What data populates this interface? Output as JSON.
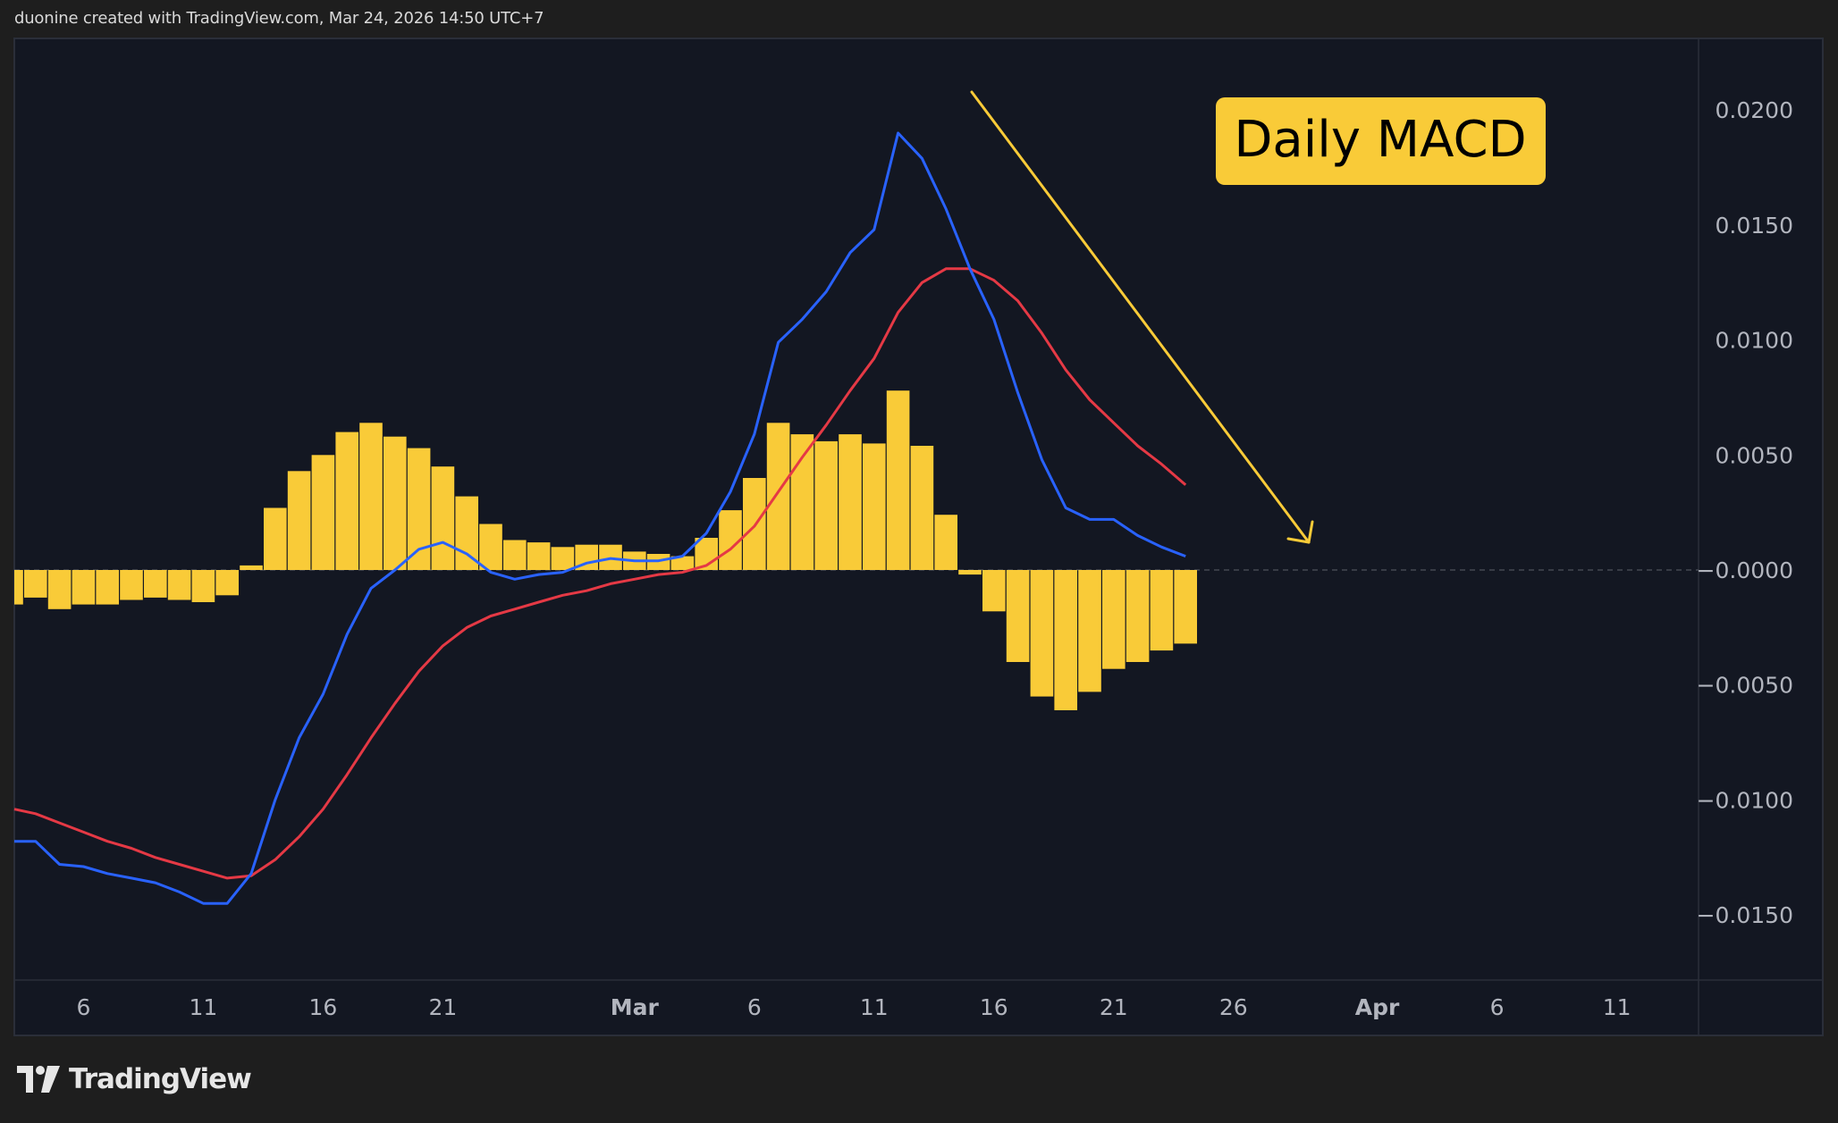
{
  "header": {
    "caption": "duonine created with TradingView.com, Mar 24, 2026 14:50 UTC+7"
  },
  "annotation": {
    "label": "Daily MACD",
    "arrow": {
      "direction": "down-right",
      "color": "#f9cb38"
    }
  },
  "footer": {
    "brand": "TradingView",
    "logo_icon": "tradingview-logo-icon"
  },
  "colors": {
    "background": "#1e1e1e",
    "plot_background": "#131722",
    "frame_border": "#2a2e39",
    "grid_zero_line": "#5d606b",
    "axis_text": "#b2b5be",
    "histogram": "#f9cb38",
    "macd_line": "#2962ff",
    "signal_line": "#e53945",
    "annotation_box": "#f9cb38",
    "annotation_text": "#000000"
  },
  "axes": {
    "y_ticks": [
      {
        "value": 0.02,
        "label": "0.0200"
      },
      {
        "value": 0.015,
        "label": "0.0150"
      },
      {
        "value": 0.01,
        "label": "0.0100"
      },
      {
        "value": 0.005,
        "label": "0.0050"
      },
      {
        "value": 0.0,
        "label": "−0.0000"
      },
      {
        "value": -0.005,
        "label": "−0.0050"
      },
      {
        "value": -0.01,
        "label": "−0.0100"
      },
      {
        "value": -0.015,
        "label": "−0.0150"
      }
    ],
    "x_ticks": [
      {
        "day_index": 3,
        "label": "6",
        "bold": false
      },
      {
        "day_index": 8,
        "label": "11",
        "bold": false
      },
      {
        "day_index": 13,
        "label": "16",
        "bold": false
      },
      {
        "day_index": 18,
        "label": "21",
        "bold": false
      },
      {
        "day_index": 26,
        "label": "Mar",
        "bold": true
      },
      {
        "day_index": 31,
        "label": "6",
        "bold": false
      },
      {
        "day_index": 36,
        "label": "11",
        "bold": false
      },
      {
        "day_index": 41,
        "label": "16",
        "bold": false
      },
      {
        "day_index": 46,
        "label": "21",
        "bold": false
      },
      {
        "day_index": 51,
        "label": "26",
        "bold": false
      },
      {
        "day_index": 57,
        "label": "Apr",
        "bold": true
      },
      {
        "day_index": 62,
        "label": "6",
        "bold": false
      },
      {
        "day_index": 67,
        "label": "11",
        "bold": false
      }
    ]
  },
  "chart_data": {
    "type": "bar",
    "title": "Daily MACD",
    "xlabel": "",
    "ylabel": "",
    "ylim": [
      -0.0178,
      0.0215
    ],
    "grid": false,
    "legend": null,
    "x": [
      "Feb 3",
      "Feb 4",
      "Feb 5",
      "Feb 6",
      "Feb 7",
      "Feb 8",
      "Feb 9",
      "Feb 10",
      "Feb 11",
      "Feb 12",
      "Feb 13",
      "Feb 14",
      "Feb 15",
      "Feb 16",
      "Feb 17",
      "Feb 18",
      "Feb 19",
      "Feb 20",
      "Feb 21",
      "Feb 22",
      "Feb 23",
      "Feb 24",
      "Feb 25",
      "Feb 26",
      "Feb 27",
      "Feb 28",
      "Mar 1",
      "Mar 2",
      "Mar 3",
      "Mar 4",
      "Mar 5",
      "Mar 6",
      "Mar 7",
      "Mar 8",
      "Mar 9",
      "Mar 10",
      "Mar 11",
      "Mar 12",
      "Mar 13",
      "Mar 14",
      "Mar 15",
      "Mar 16",
      "Mar 17",
      "Mar 18",
      "Mar 19",
      "Mar 20",
      "Mar 21",
      "Mar 22",
      "Mar 23",
      "Mar 24"
    ],
    "series": [
      {
        "name": "Histogram",
        "type": "bar",
        "color": "#f9cb38",
        "values": [
          -0.0015,
          -0.0012,
          -0.0017,
          -0.0015,
          -0.0015,
          -0.0013,
          -0.0012,
          -0.0013,
          -0.0014,
          -0.0011,
          0.0002,
          0.0027,
          0.0043,
          0.005,
          0.006,
          0.0064,
          0.0058,
          0.0053,
          0.0045,
          0.0032,
          0.002,
          0.0013,
          0.0012,
          0.001,
          0.0011,
          0.0011,
          0.0008,
          0.0007,
          0.0006,
          0.0014,
          0.0026,
          0.004,
          0.0064,
          0.0059,
          0.0056,
          0.0059,
          0.0055,
          0.0078,
          0.0054,
          0.0024,
          -0.0002,
          -0.0018,
          -0.004,
          -0.0055,
          -0.0061,
          -0.0053,
          -0.0043,
          -0.004,
          -0.0035,
          -0.0032
        ]
      },
      {
        "name": "MACD",
        "type": "line",
        "color": "#2962ff",
        "values": [
          -0.0118,
          -0.0118,
          -0.0128,
          -0.0129,
          -0.0132,
          -0.0134,
          -0.0136,
          -0.014,
          -0.0145,
          -0.0145,
          -0.0132,
          -0.01,
          -0.0073,
          -0.0054,
          -0.0028,
          -0.0008,
          0.0,
          0.0009,
          0.0012,
          0.0007,
          -0.0001,
          -0.0004,
          -0.0002,
          -0.0001,
          0.0003,
          0.0005,
          0.0004,
          0.0004,
          0.0006,
          0.0016,
          0.0034,
          0.0059,
          0.0099,
          0.0109,
          0.0121,
          0.0138,
          0.0148,
          0.019,
          0.0179,
          0.0157,
          0.0131,
          0.0109,
          0.0077,
          0.0048,
          0.0027,
          0.0022,
          0.0022,
          0.0015,
          0.001,
          0.0006
        ]
      },
      {
        "name": "Signal",
        "type": "line",
        "color": "#e53945",
        "values": [
          -0.0104,
          -0.0106,
          -0.011,
          -0.0114,
          -0.0118,
          -0.0121,
          -0.0125,
          -0.0128,
          -0.0131,
          -0.0134,
          -0.0133,
          -0.0126,
          -0.0116,
          -0.0104,
          -0.0089,
          -0.0073,
          -0.0058,
          -0.0044,
          -0.0033,
          -0.0025,
          -0.002,
          -0.0017,
          -0.0014,
          -0.0011,
          -0.0009,
          -0.0006,
          -0.0004,
          -0.0002,
          -0.0001,
          0.0002,
          0.0009,
          0.0019,
          0.0034,
          0.0049,
          0.0063,
          0.0078,
          0.0092,
          0.0112,
          0.0125,
          0.0131,
          0.0131,
          0.0126,
          0.0117,
          0.0103,
          0.0087,
          0.0074,
          0.0064,
          0.0054,
          0.0046,
          0.0037
        ]
      }
    ],
    "annotations": [
      {
        "type": "label",
        "text": "Daily MACD"
      },
      {
        "type": "arrow",
        "from": "Mar 16 @ 0.0207",
        "to": "Mar 29 @ 0.0012",
        "meaning": "downtrend"
      }
    ]
  }
}
